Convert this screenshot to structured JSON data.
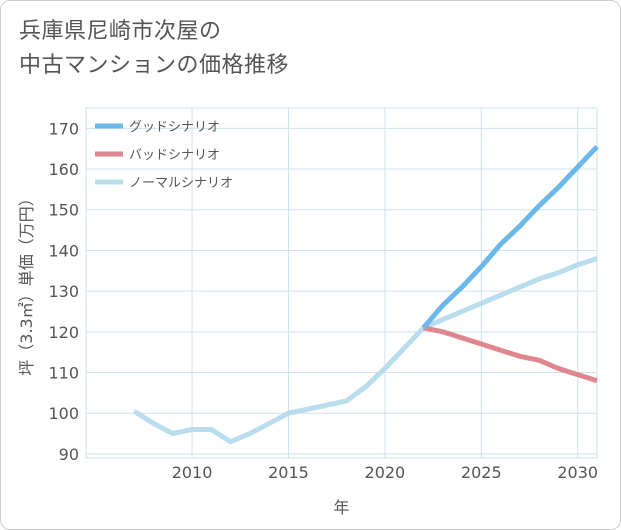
{
  "title_line1": "兵庫県尼崎市次屋の",
  "title_line2": "中古マンションの価格推移",
  "chart_data": {
    "type": "line",
    "xlabel": "年",
    "ylabel": "坪（3.3㎡）単価（万円）",
    "xlim": [
      2004.5,
      2031
    ],
    "ylim": [
      89,
      175
    ],
    "xticks": [
      2010,
      2015,
      2020,
      2025,
      2030
    ],
    "yticks": [
      90,
      100,
      110,
      120,
      130,
      140,
      150,
      160,
      170
    ],
    "grid": true,
    "legend_position": "top-left",
    "series": [
      {
        "name": "グッドシナリオ",
        "color": "#6bb8ea",
        "x": [
          2022,
          2023,
          2024,
          2025,
          2026,
          2027,
          2028,
          2029,
          2030,
          2031
        ],
        "y": [
          121,
          126.5,
          131,
          136,
          141.5,
          146,
          151,
          155.5,
          160.5,
          165.5
        ]
      },
      {
        "name": "バッドシナリオ",
        "color": "#e0868f",
        "x": [
          2022,
          2023,
          2024,
          2025,
          2026,
          2027,
          2028,
          2029,
          2030,
          2031
        ],
        "y": [
          121,
          120,
          118.5,
          117,
          115.5,
          114,
          113,
          111,
          109.5,
          108
        ]
      },
      {
        "name": "ノーマルシナリオ",
        "color": "#b9ddec",
        "x": [
          2007,
          2008,
          2009,
          2010,
          2011,
          2012,
          2013,
          2014,
          2015,
          2016,
          2017,
          2018,
          2019,
          2020,
          2021,
          2022,
          2023,
          2024,
          2025,
          2026,
          2027,
          2028,
          2029,
          2030,
          2031
        ],
        "y": [
          100.5,
          97.5,
          95,
          96,
          96,
          93,
          95,
          97.5,
          100,
          101,
          102,
          103,
          106.5,
          111,
          116,
          121,
          123,
          125,
          127,
          129,
          131,
          133,
          134.5,
          136.5,
          138
        ]
      }
    ]
  }
}
